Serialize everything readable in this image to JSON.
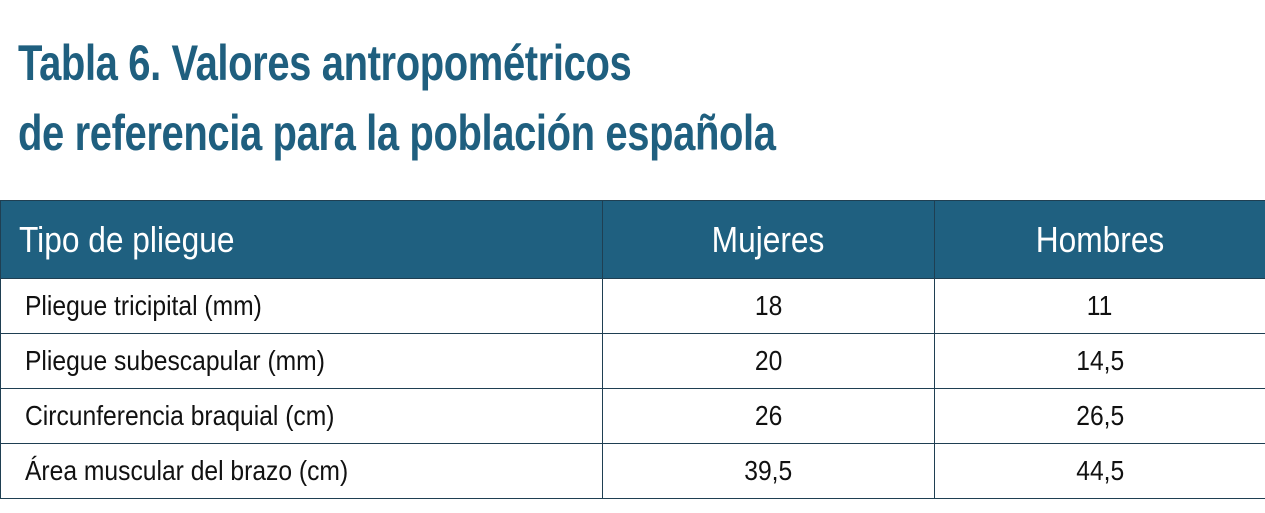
{
  "title": {
    "line1": "Tabla 6. Valores antropométricos",
    "line2": "de referencia para la población española"
  },
  "table": {
    "headers": [
      "Tipo de pliegue",
      "Mujeres",
      "Hombres"
    ],
    "rows": [
      [
        "Pliegue tricipital (mm)",
        "18",
        "11"
      ],
      [
        "Pliegue subescapular (mm)",
        "20",
        "14,5"
      ],
      [
        "Circunferencia braquial (cm)",
        "26",
        "26,5"
      ],
      [
        "Área muscular del brazo (cm)",
        "39,5",
        "44,5"
      ]
    ]
  },
  "colors": {
    "title": "#1f5f7f",
    "header_bg": "#1f6080",
    "header_text": "#ffffff",
    "border": "#1f3f52",
    "body_text": "#111111"
  }
}
